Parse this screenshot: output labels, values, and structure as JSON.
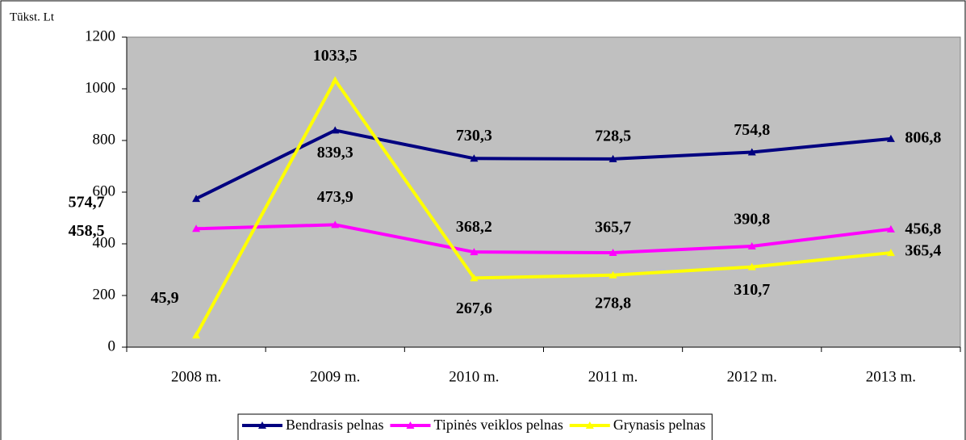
{
  "chart_data": {
    "type": "line",
    "unit_label": "Tūkst. Lt",
    "categories": [
      "2008 m.",
      "2009 m.",
      "2010 m.",
      "2011 m.",
      "2012 m.",
      "2013 m."
    ],
    "series": [
      {
        "name": "Bendrasis pelnas",
        "color": "#000080",
        "values": [
          574.7,
          839.3,
          730.3,
          728.5,
          754.8,
          806.8
        ],
        "value_labels": [
          "574,7",
          "839,3",
          "730,3",
          "728,5",
          "754,8",
          "806,8"
        ]
      },
      {
        "name": "Tipinės veiklos pelnas",
        "color": "#ff00ff",
        "values": [
          458.5,
          473.9,
          368.2,
          365.7,
          390.8,
          456.8
        ],
        "value_labels": [
          "458,5",
          "473,9",
          "368,2",
          "365,7",
          "390,8",
          "456,8"
        ]
      },
      {
        "name": "Grynasis pelnas",
        "color": "#ffff00",
        "values": [
          45.9,
          1033.5,
          267.6,
          278.8,
          310.7,
          365.4
        ],
        "value_labels": [
          "45,9",
          "1033,5",
          "267,6",
          "278,8",
          "310,7",
          "365,4"
        ]
      }
    ],
    "ylim": [
      0,
      1200
    ],
    "yticks": [
      0,
      200,
      400,
      600,
      800,
      1000,
      1200
    ],
    "legend": "bottom",
    "plot_background": "#c0c0c0"
  }
}
